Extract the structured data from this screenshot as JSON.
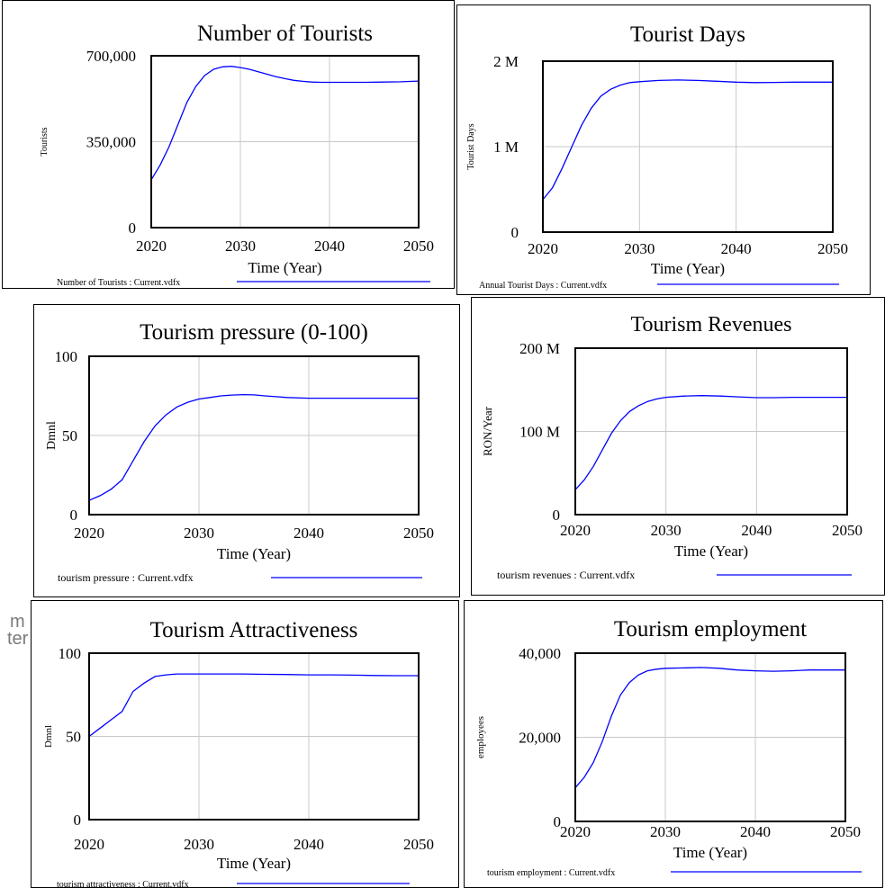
{
  "fragments": [
    "m",
    "ter"
  ],
  "line_color": "#0000ff",
  "chart_data": [
    {
      "type": "line",
      "title": "Number of Tourists",
      "xlabel": "Time (Year)",
      "ylabel": "Tourists",
      "ylim": [
        0,
        700000
      ],
      "xlim": [
        2020,
        2050
      ],
      "xticks": [
        "2020",
        "2030",
        "2040",
        "2050"
      ],
      "yticks": [
        "0",
        "350,000",
        "700,000"
      ],
      "legend": "Number of Tourists : Current.vdfx",
      "x": [
        2020,
        2021,
        2022,
        2023,
        2024,
        2025,
        2026,
        2027,
        2028,
        2029,
        2030,
        2031,
        2032,
        2033,
        2034,
        2035,
        2036,
        2037,
        2038,
        2039,
        2040,
        2042,
        2044,
        2046,
        2048,
        2050
      ],
      "y": [
        195000,
        255000,
        330000,
        420000,
        510000,
        575000,
        620000,
        645000,
        655000,
        657000,
        652000,
        645000,
        635000,
        625000,
        615000,
        607000,
        600000,
        596000,
        593000,
        592000,
        592000,
        592000,
        592000,
        593000,
        594000,
        597000
      ]
    },
    {
      "type": "line",
      "title": "Tourist Days",
      "xlabel": "Time (Year)",
      "ylabel": "Tourist Days",
      "ylim": [
        0,
        2000000
      ],
      "xlim": [
        2020,
        2050
      ],
      "xticks": [
        "2020",
        "2030",
        "2040",
        "2050"
      ],
      "yticks": [
        "0",
        "1 M",
        "2 M"
      ],
      "legend": "Annual Tourist Days : Current.vdfx",
      "x": [
        2020,
        2021,
        2022,
        2023,
        2024,
        2025,
        2026,
        2027,
        2028,
        2029,
        2030,
        2032,
        2034,
        2036,
        2038,
        2040,
        2042,
        2044,
        2046,
        2048,
        2050
      ],
      "y": [
        380000,
        520000,
        750000,
        1000000,
        1250000,
        1450000,
        1590000,
        1670000,
        1720000,
        1750000,
        1760000,
        1775000,
        1780000,
        1775000,
        1765000,
        1755000,
        1750000,
        1752000,
        1755000,
        1755000,
        1755000
      ]
    },
    {
      "type": "line",
      "title": "Tourism pressure (0-100)",
      "xlabel": "Time (Year)",
      "ylabel": "Dmnl",
      "ylim": [
        0,
        100
      ],
      "xlim": [
        2020,
        2050
      ],
      "xticks": [
        "2020",
        "2030",
        "2040",
        "2050"
      ],
      "yticks": [
        "0",
        "50",
        "100"
      ],
      "legend": "tourism pressure : Current.vdfx",
      "x": [
        2020,
        2021,
        2022,
        2023,
        2024,
        2025,
        2026,
        2027,
        2028,
        2029,
        2030,
        2031,
        2032,
        2033,
        2034,
        2035,
        2036,
        2037,
        2038,
        2040,
        2042,
        2044,
        2046,
        2048,
        2050
      ],
      "y": [
        9,
        12,
        16,
        22,
        34,
        46,
        56,
        63,
        68,
        71,
        73,
        74,
        75,
        75.5,
        75.8,
        75.6,
        75,
        74.5,
        74,
        73.5,
        73.5,
        73.5,
        73.5,
        73.5,
        73.5
      ]
    },
    {
      "type": "line",
      "title": "Tourism Revenues",
      "xlabel": "Time (Year)",
      "ylabel": "RON/Year",
      "ylim": [
        0,
        200000000
      ],
      "xlim": [
        2020,
        2050
      ],
      "xticks": [
        "2020",
        "2030",
        "2040",
        "2050"
      ],
      "yticks": [
        "0",
        "100 M",
        "200 M"
      ],
      "legend": "tourism revenues : Current.vdfx",
      "x": [
        2020,
        2021,
        2022,
        2023,
        2024,
        2025,
        2026,
        2027,
        2028,
        2029,
        2030,
        2032,
        2034,
        2036,
        2038,
        2040,
        2042,
        2044,
        2046,
        2048,
        2050
      ],
      "y": [
        30000000,
        42000000,
        58000000,
        78000000,
        98000000,
        113000000,
        124000000,
        131000000,
        136000000,
        139000000,
        141000000,
        142500000,
        143000000,
        142500000,
        141500000,
        140500000,
        140500000,
        141000000,
        141000000,
        141000000,
        141000000
      ]
    },
    {
      "type": "line",
      "title": "Tourism Attractiveness",
      "xlabel": "Time (Year)",
      "ylabel": "Dmnl",
      "ylim": [
        0,
        100
      ],
      "xlim": [
        2020,
        2050
      ],
      "xticks": [
        "2020",
        "2030",
        "2040",
        "2050"
      ],
      "yticks": [
        "0",
        "50",
        "100"
      ],
      "legend": "tourism attractiveness : Current.vdfx",
      "x": [
        2020,
        2021,
        2022,
        2023,
        2024,
        2025,
        2026,
        2027,
        2028,
        2030,
        2032,
        2034,
        2036,
        2038,
        2040,
        2042,
        2044,
        2046,
        2048,
        2050
      ],
      "y": [
        50,
        55,
        60,
        65,
        77,
        82,
        86,
        87,
        87.5,
        87.5,
        87.5,
        87.5,
        87.3,
        87.2,
        87,
        87,
        86.8,
        86.6,
        86.5,
        86.5
      ]
    },
    {
      "type": "line",
      "title": "Tourism employment",
      "xlabel": "Time (Year)",
      "ylabel": "employees",
      "ylim": [
        0,
        40000
      ],
      "xlim": [
        2020,
        2050
      ],
      "xticks": [
        "2020",
        "2030",
        "2040",
        "2050"
      ],
      "yticks": [
        "0",
        "20,000",
        "40,000"
      ],
      "legend": "tourism employment : Current.vdfx",
      "x": [
        2020,
        2021,
        2022,
        2023,
        2024,
        2025,
        2026,
        2027,
        2028,
        2029,
        2030,
        2032,
        2034,
        2036,
        2038,
        2040,
        2042,
        2044,
        2046,
        2048,
        2050
      ],
      "y": [
        8000,
        10500,
        14000,
        19000,
        25000,
        30000,
        33000,
        34800,
        35800,
        36200,
        36400,
        36500,
        36600,
        36400,
        36000,
        35800,
        35700,
        35800,
        36000,
        36000,
        36000
      ]
    }
  ]
}
